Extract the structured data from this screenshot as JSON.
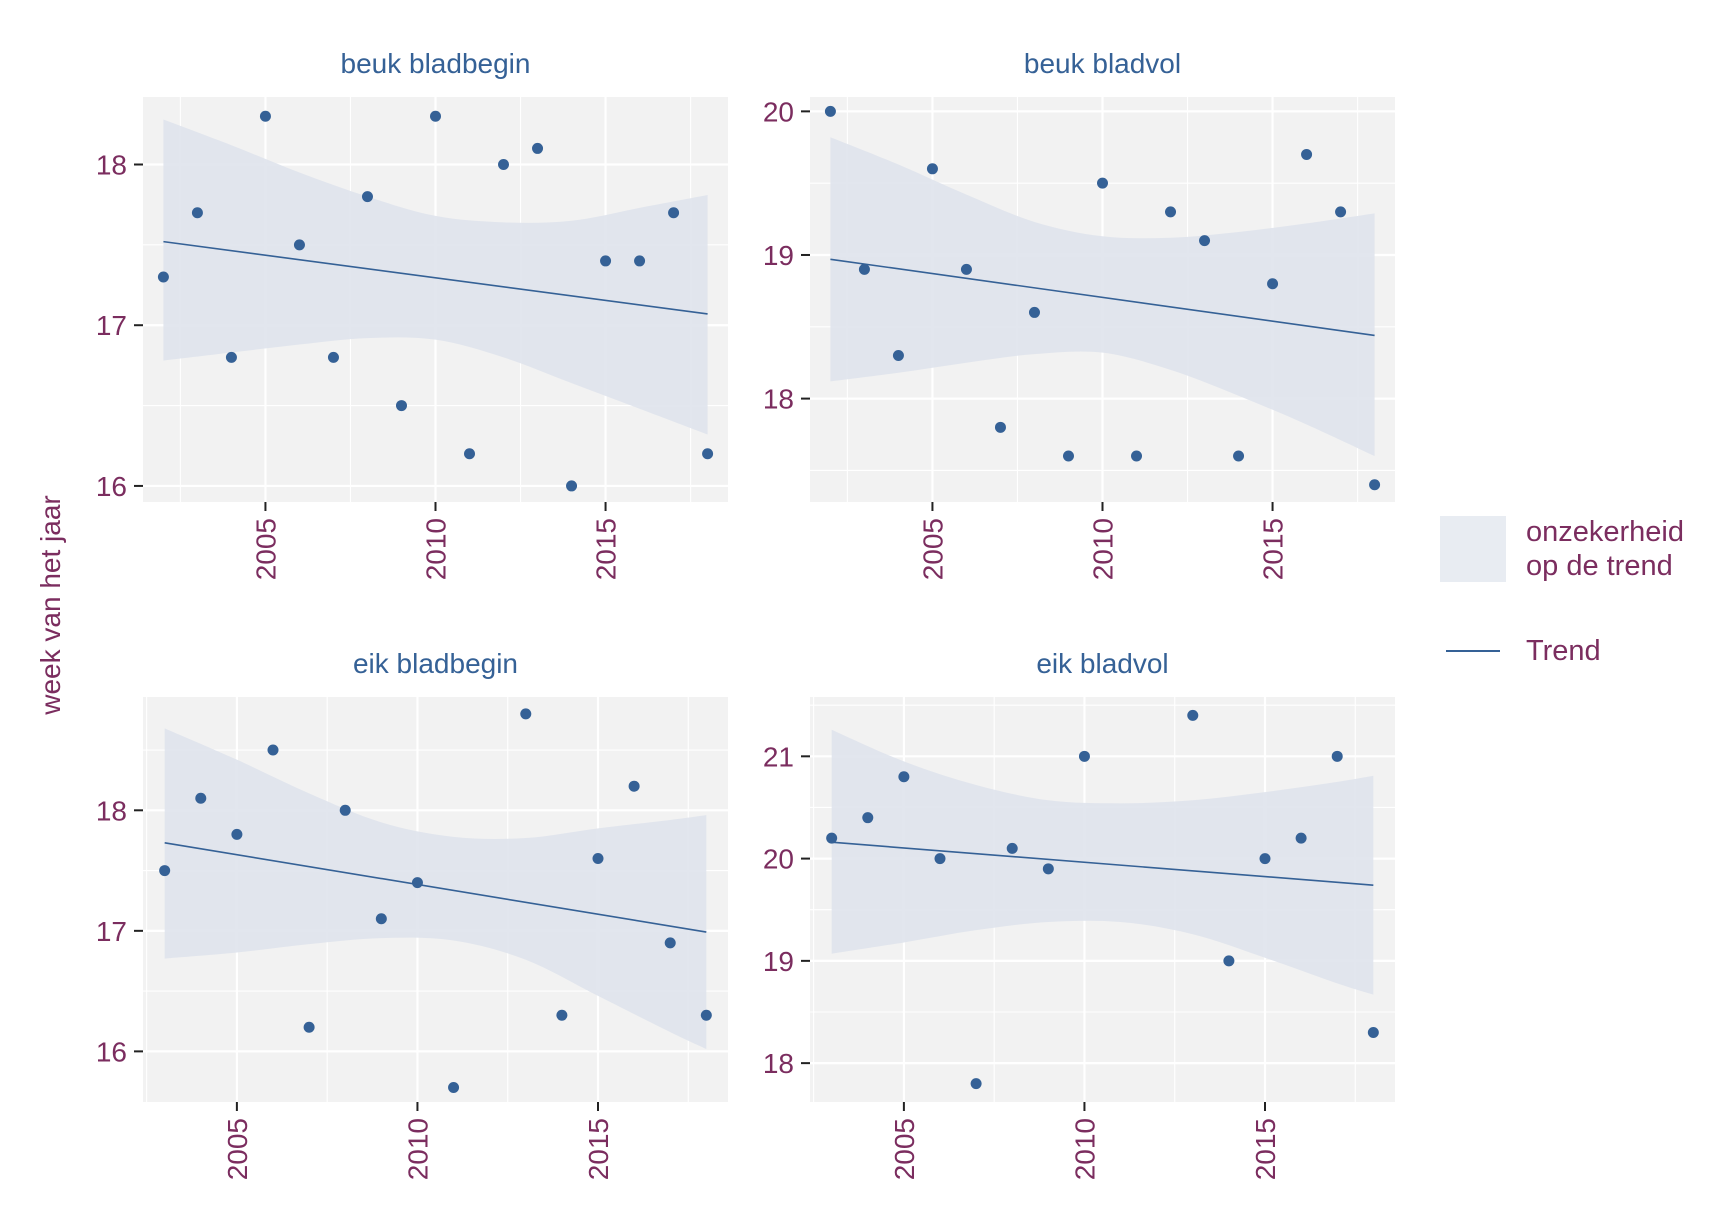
{
  "colors": {
    "panel_bg": "#f2f2f2",
    "grid": "#ffffff",
    "point": "#356196",
    "trend_line": "#356196",
    "ribbon": "#dfe4ed",
    "strip_text": "#356196",
    "axis_text": "#7b2d5f",
    "legend_band": "#e8ecf2"
  },
  "y_axis_title": "week van het jaar",
  "legend": {
    "ribbon_label_line1": "onzekerheid",
    "ribbon_label_line2": "op de trend",
    "line_label": "Trend"
  },
  "chart_data": [
    {
      "type": "scatter",
      "title": "beuk bladbegin",
      "x_ticks": [
        2005,
        2010,
        2015
      ],
      "y_ticks": [
        16,
        17,
        18
      ],
      "xlim": [
        2001.4,
        2018.6
      ],
      "ylim": [
        15.9,
        18.42
      ],
      "points": [
        [
          2002,
          17.3
        ],
        [
          2003,
          17.7
        ],
        [
          2004,
          16.8
        ],
        [
          2005,
          18.3
        ],
        [
          2006,
          17.5
        ],
        [
          2007,
          16.8
        ],
        [
          2008,
          17.8
        ],
        [
          2009,
          16.5
        ],
        [
          2010,
          18.3
        ],
        [
          2011,
          16.2
        ],
        [
          2012,
          18.0
        ],
        [
          2013,
          18.1
        ],
        [
          2014,
          16.0
        ],
        [
          2015,
          17.4
        ],
        [
          2016,
          17.4
        ],
        [
          2017,
          17.7
        ],
        [
          2018,
          16.2
        ]
      ],
      "trend": [
        [
          2002,
          17.52
        ],
        [
          2018,
          17.07
        ]
      ],
      "ribbon": {
        "x": [
          2002,
          2004,
          2006,
          2008,
          2010,
          2012,
          2014,
          2016,
          2018
        ],
        "upper": [
          18.28,
          18.12,
          17.95,
          17.8,
          17.68,
          17.64,
          17.65,
          17.73,
          17.81
        ],
        "lower": [
          16.78,
          16.83,
          16.88,
          16.92,
          16.91,
          16.8,
          16.64,
          16.48,
          16.32
        ]
      }
    },
    {
      "type": "scatter",
      "title": "beuk bladvol",
      "x_ticks": [
        2005,
        2010,
        2015
      ],
      "y_ticks": [
        18,
        19,
        20
      ],
      "xlim": [
        2001.4,
        2018.6
      ],
      "ylim": [
        17.28,
        20.1
      ],
      "points": [
        [
          2002,
          20.0
        ],
        [
          2003,
          18.9
        ],
        [
          2004,
          18.3
        ],
        [
          2005,
          19.6
        ],
        [
          2006,
          18.9
        ],
        [
          2007,
          17.8
        ],
        [
          2008,
          18.6
        ],
        [
          2009,
          17.6
        ],
        [
          2010,
          19.5
        ],
        [
          2011,
          17.6
        ],
        [
          2012,
          19.3
        ],
        [
          2013,
          19.1
        ],
        [
          2014,
          17.6
        ],
        [
          2015,
          18.8
        ],
        [
          2016,
          19.7
        ],
        [
          2017,
          19.3
        ],
        [
          2018,
          17.4
        ]
      ],
      "trend": [
        [
          2002,
          18.97
        ],
        [
          2018,
          18.44
        ]
      ],
      "ribbon": {
        "x": [
          2002,
          2004,
          2006,
          2008,
          2010,
          2012,
          2014,
          2016,
          2018
        ],
        "upper": [
          19.82,
          19.63,
          19.42,
          19.23,
          19.13,
          19.12,
          19.16,
          19.22,
          19.29
        ],
        "lower": [
          18.12,
          18.18,
          18.25,
          18.31,
          18.32,
          18.2,
          18.02,
          17.82,
          17.6
        ]
      }
    },
    {
      "type": "scatter",
      "title": "eik bladbegin",
      "x_ticks": [
        2005,
        2010,
        2015
      ],
      "y_ticks": [
        16,
        17,
        18
      ],
      "xlim": [
        2002.4,
        2018.6
      ],
      "ylim": [
        15.58,
        18.94
      ],
      "points": [
        [
          2003,
          17.5
        ],
        [
          2004,
          18.1
        ],
        [
          2005,
          17.8
        ],
        [
          2006,
          18.5
        ],
        [
          2007,
          16.2
        ],
        [
          2008,
          18.0
        ],
        [
          2009,
          17.1
        ],
        [
          2010,
          17.4
        ],
        [
          2011,
          15.7
        ],
        [
          2013,
          18.8
        ],
        [
          2014,
          16.3
        ],
        [
          2015,
          17.6
        ],
        [
          2016,
          18.2
        ],
        [
          2017,
          16.9
        ],
        [
          2018,
          16.3
        ]
      ],
      "trend": [
        [
          2003,
          17.73
        ],
        [
          2018,
          16.99
        ]
      ],
      "ribbon": {
        "x": [
          2003,
          2005,
          2007,
          2009,
          2011,
          2013,
          2015,
          2017,
          2018
        ],
        "upper": [
          18.68,
          18.42,
          18.14,
          17.9,
          17.78,
          17.77,
          17.85,
          17.92,
          17.96
        ],
        "lower": [
          16.77,
          16.82,
          16.89,
          16.94,
          16.92,
          16.76,
          16.46,
          16.16,
          16.02
        ]
      }
    },
    {
      "type": "scatter",
      "title": "eik bladvol",
      "x_ticks": [
        2005,
        2010,
        2015
      ],
      "y_ticks": [
        18,
        19,
        20,
        21
      ],
      "xlim": [
        2002.4,
        2018.6
      ],
      "ylim": [
        17.62,
        21.58
      ],
      "points": [
        [
          2003,
          20.2
        ],
        [
          2004,
          20.4
        ],
        [
          2005,
          20.8
        ],
        [
          2006,
          20.0
        ],
        [
          2007,
          17.8
        ],
        [
          2008,
          20.1
        ],
        [
          2009,
          19.9
        ],
        [
          2010,
          21.0
        ],
        [
          2013,
          21.4
        ],
        [
          2014,
          19.0
        ],
        [
          2015,
          20.0
        ],
        [
          2016,
          20.2
        ],
        [
          2017,
          21.0
        ],
        [
          2018,
          18.3
        ]
      ],
      "trend": [
        [
          2003,
          20.16
        ],
        [
          2018,
          19.74
        ]
      ],
      "ribbon": {
        "x": [
          2003,
          2005,
          2007,
          2009,
          2011,
          2013,
          2015,
          2017,
          2018
        ],
        "upper": [
          21.26,
          20.95,
          20.72,
          20.57,
          20.54,
          20.57,
          20.65,
          20.75,
          20.81
        ],
        "lower": [
          19.07,
          19.18,
          19.3,
          19.38,
          19.38,
          19.26,
          19.03,
          18.78,
          18.67
        ]
      }
    }
  ]
}
